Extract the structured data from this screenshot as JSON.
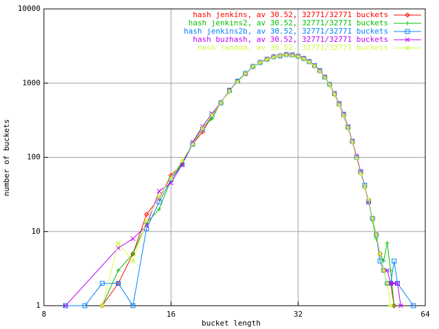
{
  "chart_data": {
    "type": "line",
    "xlabel": "bucket length",
    "ylabel": "number of buckets",
    "xlim": [
      8,
      64
    ],
    "xticks": [
      8,
      16,
      32,
      64
    ],
    "xlog": true,
    "ylim": [
      1,
      10000
    ],
    "yticks": [
      1,
      10,
      100,
      1000,
      10000
    ],
    "ylog": true,
    "grid": true,
    "legend": "top-right",
    "series": [
      {
        "name": "hash jenkins, av 30.52, 32771/32771 buckets",
        "color": "#ff0000",
        "marker": "diamond",
        "x": [
          11,
          12,
          13,
          14,
          15,
          16,
          17,
          18,
          19,
          20,
          21,
          22,
          23,
          24,
          25,
          26,
          27,
          28,
          29,
          30,
          31,
          32,
          33,
          34,
          35,
          36,
          37,
          38,
          39,
          40,
          41,
          42,
          43,
          44,
          45,
          46,
          47,
          48,
          49,
          50,
          51,
          52,
          53,
          54
        ],
        "values": [
          1,
          2,
          5,
          17,
          28,
          57,
          82,
          150,
          220,
          360,
          540,
          800,
          1050,
          1330,
          1650,
          1900,
          2100,
          2250,
          2350,
          2450,
          2380,
          2300,
          2150,
          1950,
          1700,
          1450,
          1200,
          950,
          720,
          520,
          370,
          250,
          160,
          100,
          62,
          40,
          25,
          15,
          9,
          5,
          3,
          2,
          2,
          1
        ]
      },
      {
        "name": "hash jenkins2, av 30.52, 32771/32771 buckets",
        "color": "#00c000",
        "marker": "plus",
        "x": [
          11,
          12,
          13,
          14,
          15,
          16,
          17,
          18,
          19,
          20,
          21,
          22,
          23,
          24,
          25,
          26,
          27,
          28,
          29,
          30,
          31,
          32,
          33,
          34,
          35,
          36,
          37,
          38,
          39,
          40,
          41,
          42,
          43,
          44,
          45,
          46,
          47,
          48,
          49,
          50,
          51,
          52,
          53,
          54
        ],
        "values": [
          1,
          3,
          5,
          13,
          20,
          50,
          85,
          155,
          250,
          330,
          560,
          760,
          1080,
          1350,
          1640,
          1880,
          2080,
          2230,
          2330,
          2380,
          2350,
          2250,
          2100,
          1900,
          1700,
          1450,
          1180,
          940,
          700,
          510,
          360,
          245,
          160,
          98,
          60,
          42,
          26,
          14,
          8,
          5,
          4,
          7,
          3,
          1
        ]
      },
      {
        "name": "hash jenkins2b, av 30.52, 32771/32771 buckets",
        "color": "#0080ff",
        "marker": "square",
        "x": [
          9,
          10,
          11,
          12,
          13,
          14,
          15,
          16,
          17,
          18,
          19,
          20,
          21,
          22,
          23,
          24,
          25,
          26,
          27,
          28,
          29,
          30,
          31,
          32,
          33,
          34,
          35,
          36,
          37,
          38,
          39,
          40,
          41,
          42,
          43,
          44,
          45,
          46,
          47,
          48,
          49,
          50,
          51,
          52,
          53,
          54,
          55,
          60
        ],
        "values": [
          1,
          1,
          2,
          2,
          1,
          11,
          25,
          50,
          80,
          150,
          240,
          370,
          540,
          800,
          1060,
          1350,
          1680,
          1900,
          2100,
          2260,
          2320,
          2420,
          2400,
          2300,
          2150,
          1950,
          1720,
          1480,
          1200,
          960,
          720,
          530,
          380,
          255,
          165,
          100,
          64,
          42,
          25,
          15,
          9,
          4,
          3,
          2,
          2,
          4,
          2,
          1
        ]
      },
      {
        "name": "hash buzhash, av 30.52, 32771/32771 buckets",
        "color": "#c000ff",
        "marker": "cross",
        "x": [
          9,
          12,
          13,
          14,
          15,
          16,
          17,
          18,
          19,
          20,
          21,
          22,
          23,
          24,
          25,
          26,
          27,
          28,
          29,
          30,
          31,
          32,
          33,
          34,
          35,
          36,
          37,
          38,
          39,
          40,
          41,
          42,
          43,
          44,
          45,
          46,
          47,
          48,
          49,
          50,
          51,
          52,
          53,
          54,
          55,
          56
        ],
        "values": [
          1,
          6,
          8,
          12,
          35,
          45,
          80,
          160,
          260,
          390,
          550,
          790,
          1050,
          1320,
          1650,
          1920,
          2120,
          2270,
          2360,
          2430,
          2400,
          2310,
          2160,
          1960,
          1720,
          1470,
          1210,
          960,
          730,
          520,
          380,
          260,
          165,
          105,
          63,
          40,
          26,
          15,
          9,
          5,
          3,
          3,
          2,
          2,
          2,
          1
        ]
      },
      {
        "name": "hash random, av 30.52, 32771/32771 buckets",
        "color": "#ccff44",
        "marker": "star",
        "x": [
          11,
          12,
          13,
          14,
          15,
          16,
          17,
          18,
          19,
          20,
          21,
          22,
          23,
          24,
          25,
          26,
          27,
          28,
          29,
          30,
          31,
          32,
          33,
          34,
          35,
          36,
          37,
          38,
          39,
          40,
          41,
          42,
          43,
          44,
          45,
          46,
          47,
          48,
          49,
          50,
          51,
          52,
          53
        ],
        "values": [
          1,
          7,
          4,
          14,
          30,
          52,
          90,
          150,
          245,
          370,
          540,
          780,
          1040,
          1340,
          1660,
          1900,
          2090,
          2240,
          2340,
          2400,
          2360,
          2280,
          2130,
          1930,
          1700,
          1440,
          1190,
          950,
          710,
          510,
          365,
          250,
          160,
          98,
          60,
          40,
          27,
          15,
          9,
          5,
          3,
          2,
          1
        ]
      }
    ]
  }
}
